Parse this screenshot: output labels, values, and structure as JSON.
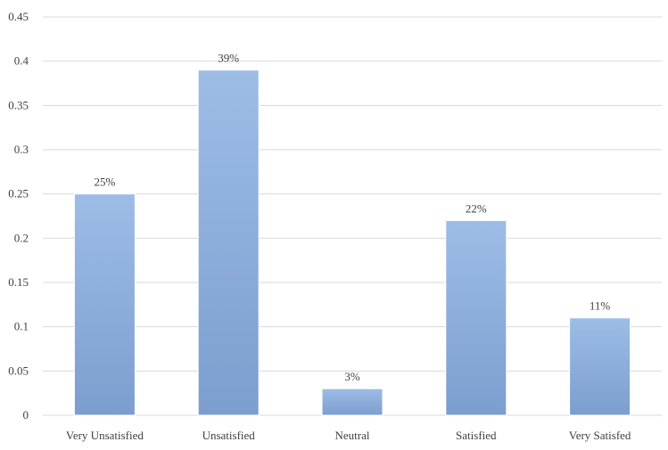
{
  "chart_data": {
    "type": "bar",
    "title": "",
    "xlabel": "",
    "ylabel": "",
    "categories": [
      "Very Unsatisfied",
      "Unsatisfied",
      "Neutral",
      "Satisfied",
      "Very Satisfed"
    ],
    "values": [
      0.25,
      0.39,
      0.03,
      0.22,
      0.11
    ],
    "data_labels": [
      "25%",
      "39%",
      "3%",
      "22%",
      "11%"
    ],
    "ylim": [
      0,
      0.45
    ],
    "yticks": [
      "0",
      "0.05",
      "0.1",
      "0.15",
      "0.2",
      "0.25",
      "0.3",
      "0.35",
      "0.4",
      "0.45"
    ],
    "grid": true,
    "legend": "none",
    "colors": {
      "bar_top": "#9dbde6",
      "bar_bottom": "#7c9ecf",
      "bar_edge": "#ffffff",
      "grid": "#d9d9d9",
      "text": "#404040"
    }
  }
}
